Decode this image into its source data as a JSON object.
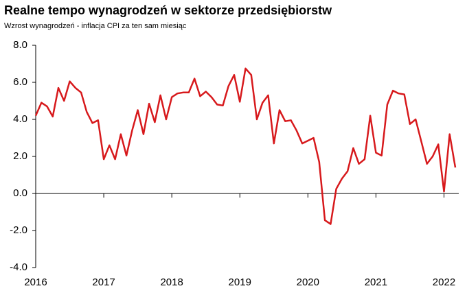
{
  "chart_data": {
    "type": "line",
    "title": "Realne tempo wynagrodzeń w sektorze przedsiębiorstw",
    "subtitle": "Wzrost wynagrodzeń - inflacja CPI za ten sam miesiąc",
    "categories": [
      "2016",
      null,
      null,
      null,
      null,
      null,
      null,
      null,
      null,
      null,
      null,
      null,
      "2017",
      null,
      null,
      null,
      null,
      null,
      null,
      null,
      null,
      null,
      null,
      null,
      "2018",
      null,
      null,
      null,
      null,
      null,
      null,
      null,
      null,
      null,
      null,
      null,
      "2019",
      null,
      null,
      null,
      null,
      null,
      null,
      null,
      null,
      null,
      null,
      null,
      "2020",
      null,
      null,
      null,
      null,
      null,
      null,
      null,
      null,
      null,
      null,
      null,
      "2021",
      null,
      null,
      null,
      null,
      null,
      null,
      null,
      null,
      null,
      null,
      null,
      "2022",
      null,
      null
    ],
    "series": [
      {
        "name": "Realne tempo wynagrodzeń",
        "color": "#d7191c",
        "values": [
          4.2,
          4.9,
          4.7,
          4.15,
          5.7,
          5.0,
          6.05,
          5.7,
          5.45,
          4.4,
          3.8,
          3.95,
          1.85,
          2.6,
          1.85,
          3.2,
          2.05,
          3.4,
          4.5,
          3.2,
          4.85,
          3.85,
          5.3,
          4.0,
          5.2,
          5.4,
          5.45,
          5.45,
          6.2,
          5.25,
          5.5,
          5.2,
          4.8,
          4.75,
          5.8,
          6.4,
          4.95,
          6.75,
          6.4,
          4.0,
          4.9,
          5.3,
          2.7,
          4.5,
          3.9,
          3.95,
          3.4,
          2.7,
          2.85,
          3.0,
          1.7,
          -1.45,
          -1.65,
          0.25,
          0.8,
          1.2,
          2.45,
          1.6,
          1.85,
          4.2,
          2.2,
          2.05,
          4.8,
          5.55,
          5.4,
          5.35,
          3.75,
          4.0,
          2.8,
          1.6,
          2.0,
          2.65,
          0.1,
          3.2,
          1.4
        ]
      }
    ],
    "ylim": [
      -4,
      8
    ],
    "yticks": [
      {
        "value": -4,
        "label": "-4.0"
      },
      {
        "value": -2,
        "label": "-2.0"
      },
      {
        "value": 0,
        "label": "0.0"
      },
      {
        "value": 2,
        "label": "2.0"
      },
      {
        "value": 4,
        "label": "4.0"
      },
      {
        "value": 6,
        "label": "6.0"
      },
      {
        "value": 8,
        "label": "8.0"
      }
    ],
    "grid": false
  }
}
